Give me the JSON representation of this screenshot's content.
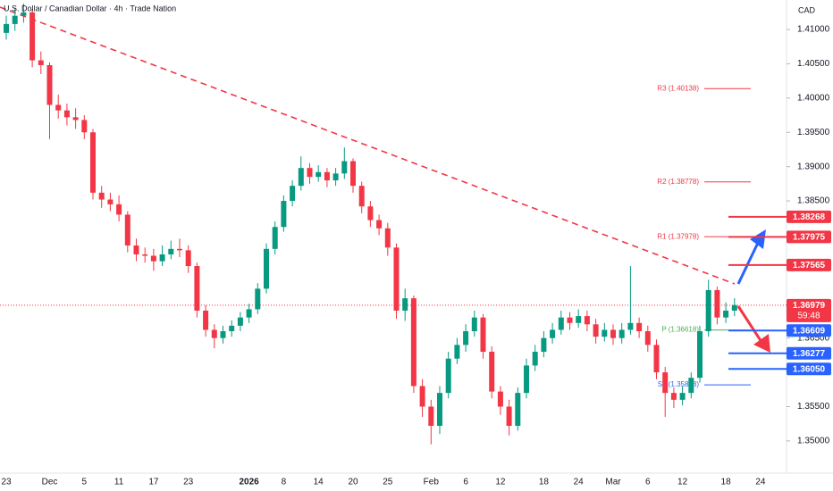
{
  "chart_data": {
    "type": "candlestick",
    "title": "U.S. Dollar / Canadian Dollar · 4h · Trade Nation",
    "currency": "CAD",
    "up_color": "#089981",
    "down_color": "#f23645",
    "categories": [
      "23",
      null,
      null,
      null,
      null,
      "Dec",
      null,
      null,
      null,
      "5",
      null,
      null,
      null,
      "11",
      null,
      null,
      null,
      "17",
      null,
      null,
      null,
      "23",
      null,
      null,
      null,
      null,
      null,
      null,
      "2026",
      null,
      null,
      null,
      "8",
      null,
      null,
      null,
      "14",
      null,
      null,
      null,
      "20",
      null,
      null,
      null,
      "25",
      null,
      null,
      null,
      null,
      "Feb",
      null,
      null,
      null,
      "6",
      null,
      null,
      null,
      "12",
      null,
      null,
      null,
      null,
      "18",
      null,
      null,
      null,
      "24",
      null,
      null,
      null,
      "Mar",
      null,
      null,
      null,
      "6",
      null,
      null,
      null,
      "12",
      null,
      null,
      null,
      null,
      "18",
      null,
      null,
      null,
      "24"
    ],
    "open": [
      1.4095,
      1.4108,
      1.412,
      1.4125,
      1.4055,
      1.4048,
      1.399,
      1.3982,
      1.3972,
      1.3968,
      1.395,
      1.3862,
      1.3852,
      1.3845,
      1.383,
      1.3785,
      1.3772,
      1.377,
      1.3762,
      1.3772,
      1.378,
      1.3778,
      1.3755,
      1.369,
      1.3662,
      1.365,
      1.366,
      1.3668,
      1.368,
      1.3692,
      1.3722,
      1.378,
      1.3812,
      1.385,
      1.3872,
      1.3898,
      1.3885,
      1.3892,
      1.388,
      1.389,
      1.3908,
      1.3872,
      1.3842,
      1.3822,
      1.381,
      1.3782,
      1.369,
      1.3708,
      1.358,
      1.355,
      1.3522,
      1.357,
      1.362,
      1.364,
      1.366,
      1.368,
      1.363,
      1.3572,
      1.355,
      1.3522,
      1.357,
      1.361,
      1.363,
      1.365,
      1.3662,
      1.368,
      1.3672,
      1.3682,
      1.367,
      1.3652,
      1.3662,
      1.365,
      1.3662,
      1.3672,
      1.366,
      1.364,
      1.36,
      1.357,
      1.356,
      1.357,
      1.3592,
      1.366,
      1.372,
      1.368,
      1.369,
      null,
      null,
      null
    ],
    "high": [
      1.412,
      1.4132,
      1.4138,
      1.413,
      1.4068,
      1.4052,
      1.4005,
      1.3992,
      1.3985,
      1.3975,
      1.3955,
      1.3872,
      1.3862,
      1.3858,
      1.3835,
      1.3795,
      1.3782,
      1.378,
      1.3785,
      1.3792,
      1.3795,
      1.3785,
      1.376,
      1.3698,
      1.367,
      1.3668,
      1.3676,
      1.3688,
      1.37,
      1.373,
      1.3788,
      1.382,
      1.3858,
      1.388,
      1.3915,
      1.3905,
      1.3902,
      1.3898,
      1.3898,
      1.3928,
      1.3912,
      1.3878,
      1.385,
      1.383,
      1.3818,
      1.3788,
      1.3722,
      1.3712,
      1.359,
      1.356,
      1.358,
      1.363,
      1.365,
      1.367,
      1.369,
      1.3685,
      1.3638,
      1.358,
      1.356,
      1.3578,
      1.362,
      1.364,
      1.366,
      1.3672,
      1.369,
      1.3688,
      1.3692,
      1.369,
      1.3678,
      1.3672,
      1.367,
      1.3672,
      1.3755,
      1.368,
      1.3668,
      1.3648,
      1.3608,
      1.3578,
      1.358,
      1.36,
      1.3668,
      1.3735,
      1.3725,
      1.3702,
      1.3708,
      null,
      null,
      null
    ],
    "low": [
      1.4085,
      1.4098,
      1.411,
      1.4045,
      1.4035,
      1.394,
      1.397,
      1.396,
      1.3955,
      1.394,
      1.3852,
      1.384,
      1.3835,
      1.382,
      1.3775,
      1.3762,
      1.376,
      1.3748,
      1.3755,
      1.3765,
      1.3768,
      1.3745,
      1.368,
      1.3652,
      1.3635,
      1.3642,
      1.3652,
      1.366,
      1.3672,
      1.3685,
      1.3715,
      1.3772,
      1.3805,
      1.3842,
      1.3865,
      1.3875,
      1.3878,
      1.387,
      1.3872,
      1.3882,
      1.3862,
      1.3832,
      1.3812,
      1.38,
      1.377,
      1.3678,
      1.3675,
      1.357,
      1.3535,
      1.3495,
      1.351,
      1.3562,
      1.3612,
      1.363,
      1.3652,
      1.362,
      1.3562,
      1.3538,
      1.3508,
      1.3515,
      1.3562,
      1.3602,
      1.3622,
      1.3642,
      1.3655,
      1.3662,
      1.3665,
      1.366,
      1.3642,
      1.3645,
      1.364,
      1.3642,
      1.3655,
      1.365,
      1.363,
      1.359,
      1.3535,
      1.3548,
      1.3552,
      1.3562,
      1.3585,
      1.3652,
      1.367,
      1.3672,
      1.3682,
      null,
      null,
      null
    ],
    "close": [
      1.4108,
      1.412,
      1.4125,
      1.4055,
      1.4048,
      1.399,
      1.3982,
      1.3972,
      1.3968,
      1.395,
      1.3862,
      1.3852,
      1.3845,
      1.383,
      1.3785,
      1.3772,
      1.377,
      1.3762,
      1.3772,
      1.378,
      1.3778,
      1.3755,
      1.369,
      1.3662,
      1.365,
      1.366,
      1.3668,
      1.368,
      1.3692,
      1.3722,
      1.378,
      1.3812,
      1.385,
      1.3872,
      1.3898,
      1.3885,
      1.3892,
      1.388,
      1.389,
      1.3908,
      1.3872,
      1.3842,
      1.3822,
      1.381,
      1.3782,
      1.369,
      1.3708,
      1.358,
      1.355,
      1.3522,
      1.357,
      1.362,
      1.364,
      1.366,
      1.368,
      1.363,
      1.3572,
      1.355,
      1.3522,
      1.357,
      1.361,
      1.363,
      1.365,
      1.3662,
      1.368,
      1.3672,
      1.3682,
      1.367,
      1.3652,
      1.3662,
      1.365,
      1.3662,
      1.3672,
      1.366,
      1.364,
      1.36,
      1.357,
      1.356,
      1.357,
      1.3592,
      1.366,
      1.372,
      1.368,
      1.369,
      1.3698,
      null,
      null,
      null
    ],
    "ylim": [
      1.3453,
      1.4143
    ],
    "yticks": [
      {
        "value": 1.41,
        "label": "1.41000"
      },
      {
        "value": 1.405,
        "label": "1.40500"
      },
      {
        "value": 1.4,
        "label": "1.40000"
      },
      {
        "value": 1.395,
        "label": "1.39500"
      },
      {
        "value": 1.39,
        "label": "1.39000"
      },
      {
        "value": 1.385,
        "label": "1.38500"
      },
      {
        "value": 1.365,
        "label": "1.36500"
      },
      {
        "value": 1.355,
        "label": "1.35500"
      },
      {
        "value": 1.35,
        "label": "1.35000"
      }
    ],
    "levels": [
      {
        "label": "R3 (1.40138)",
        "value": 1.40138,
        "color": "#f23645"
      },
      {
        "label": "R2 (1.38778)",
        "value": 1.38778,
        "color": "#f23645"
      },
      {
        "label": "R1 (1.37978)",
        "value": 1.37978,
        "color": "#f23645"
      },
      {
        "label": "P (1.36618)",
        "value": 1.36618,
        "color": "#4caf50"
      },
      {
        "label": "S1 (1.35818)",
        "value": 1.35818,
        "color": "#2962ff"
      }
    ],
    "badges": [
      {
        "value": 1.38268,
        "label": "1.38268",
        "color": "#f23645"
      },
      {
        "value": 1.37975,
        "label": "1.37975",
        "color": "#f23645"
      },
      {
        "value": 1.37565,
        "label": "1.37565",
        "color": "#f23645"
      },
      {
        "value": 1.36609,
        "label": "1.36609",
        "color": "#2962ff"
      },
      {
        "value": 1.36277,
        "label": "1.36277",
        "color": "#2962ff"
      },
      {
        "value": 1.3605,
        "label": "1.36050",
        "color": "#2962ff"
      }
    ],
    "last_price": {
      "value": 1.36979,
      "label": "1.36979",
      "countdown": "59:48",
      "color": "#f23645"
    }
  }
}
